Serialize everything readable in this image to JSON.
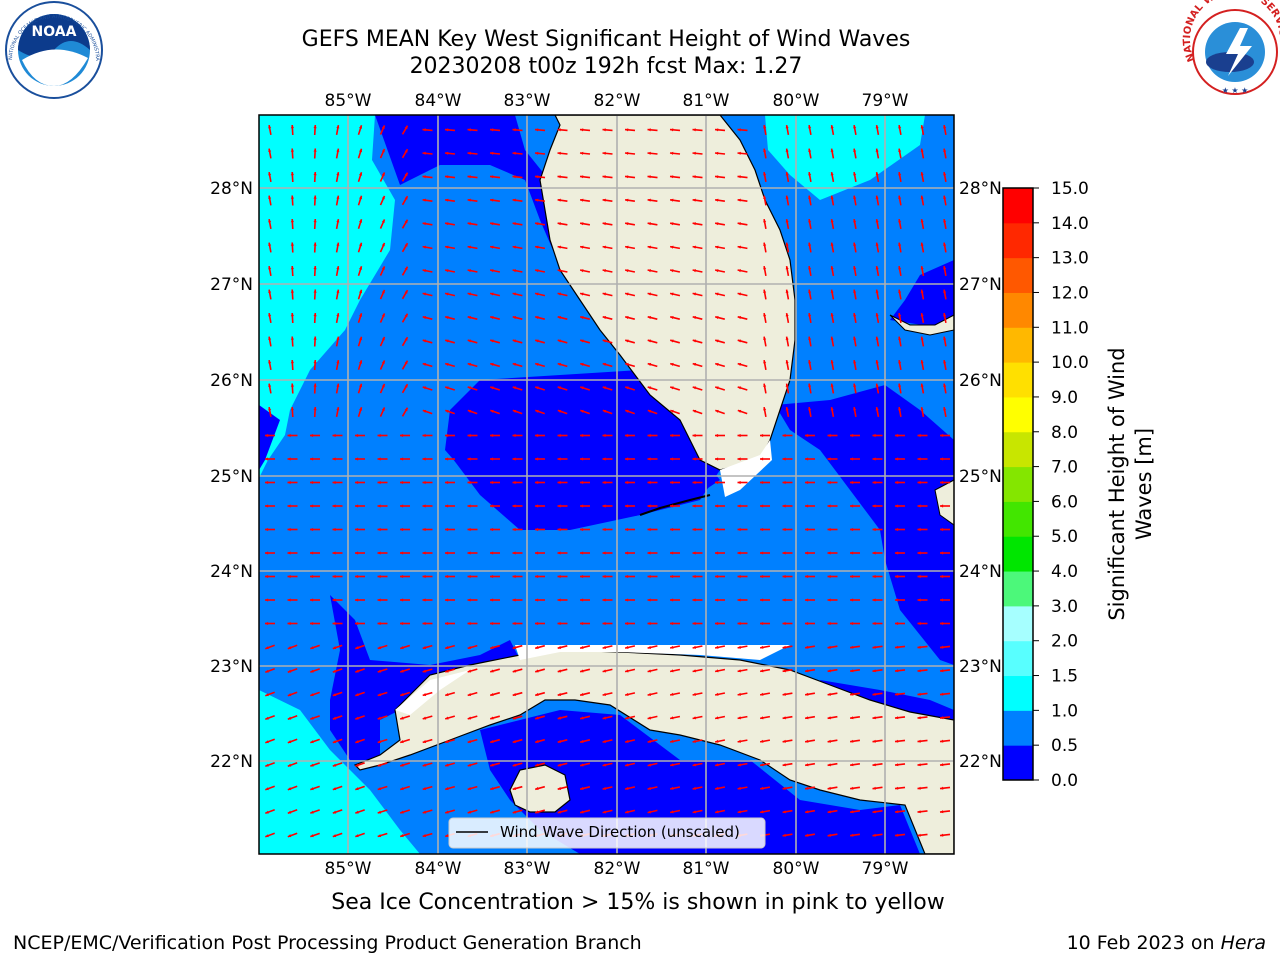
{
  "header": {
    "title_line1": "GEFS MEAN Key West Significant Height of Wind Waves",
    "title_line2": "20230208 t00z 192h fcst   Max: 1.27",
    "noaa_logo_text": "NOAA",
    "noaa_ring_text": "NATIONAL OCEANIC AND ATMOSPHERIC ADMINISTRATION · U.S. DEPARTMENT OF COMMERCE",
    "nws_ring_text": "NATIONAL WEATHER SERVICE"
  },
  "map": {
    "lon_labels": [
      "85°W",
      "84°W",
      "83°W",
      "82°W",
      "81°W",
      "80°W",
      "79°W"
    ],
    "lat_labels": [
      "28°N",
      "27°N",
      "26°N",
      "25°N",
      "24°N",
      "23°N",
      "22°N"
    ],
    "legend_label": "Wind Wave Direction (unscaled)",
    "land_color": "#eeeedc",
    "arrow_color": "#ff0000"
  },
  "colorbar": {
    "title": "Significant Height of Wind Waves [m]",
    "ticks": [
      "0.0",
      "0.5",
      "1.0",
      "1.5",
      "2.0",
      "3.0",
      "4.0",
      "5.0",
      "6.0",
      "7.0",
      "8.0",
      "9.0",
      "10.0",
      "11.0",
      "12.0",
      "13.0",
      "14.0",
      "15.0"
    ],
    "colors": [
      "#0000ff",
      "#0080ff",
      "#00ffff",
      "#58ffff",
      "#a6ffff",
      "#4cf87a",
      "#00e600",
      "#42e600",
      "#84e600",
      "#c8e600",
      "#ffff00",
      "#ffe000",
      "#ffb800",
      "#ff8800",
      "#ff5800",
      "#ff2800",
      "#ff0000"
    ]
  },
  "note": "Sea Ice Concentration > 15% is shown in pink to yellow",
  "footer": {
    "left": "NCEP/EMC/Verification Post Processing Product Generation Branch",
    "date": "10 Feb 2023 on ",
    "machine": "Hera"
  }
}
